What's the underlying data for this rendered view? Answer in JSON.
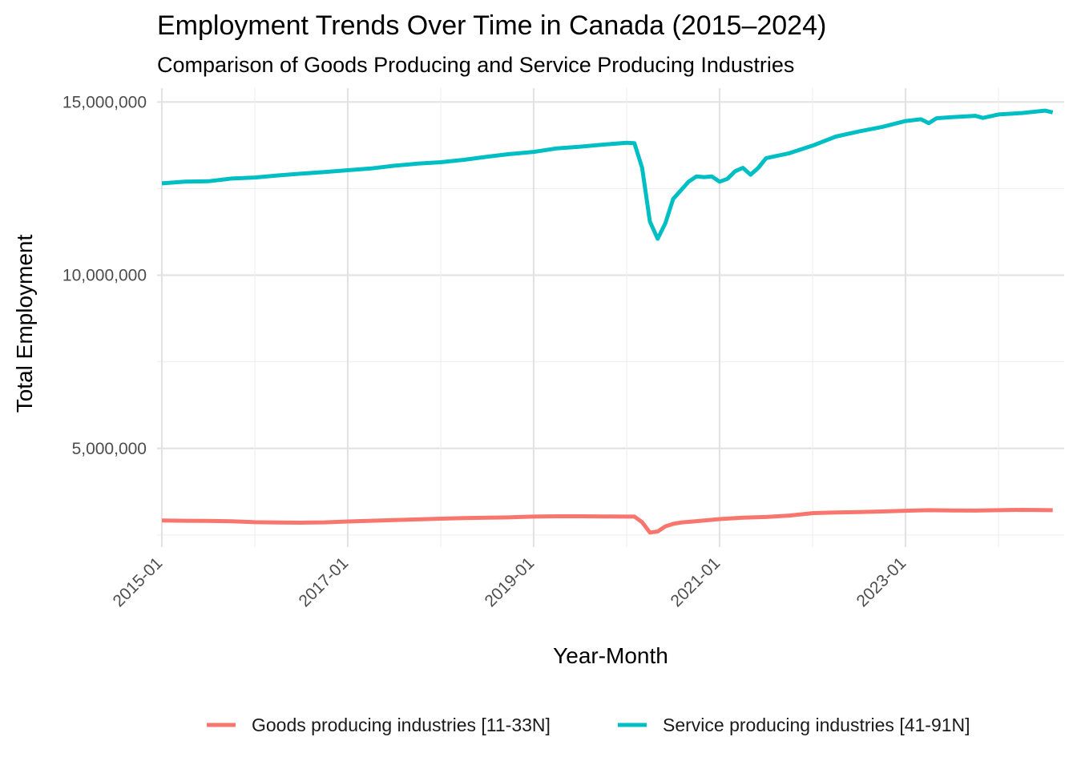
{
  "chart_data": {
    "type": "line",
    "title": "Employment Trends Over Time in Canada (2015–2024)",
    "subtitle": "Comparison of Goods Producing and Service Producing Industries",
    "xlabel": "Year-Month",
    "ylabel": "Total Employment",
    "x_ticks": [
      "2015-01",
      "2017-01",
      "2019-01",
      "2021-01",
      "2023-01"
    ],
    "y_ticks": [
      {
        "value": 5000000,
        "label": "5,000,000"
      },
      {
        "value": 10000000,
        "label": "10,000,000"
      },
      {
        "value": 15000000,
        "label": "15,000,000"
      }
    ],
    "xlim": [
      "2015-01",
      "2024-08"
    ],
    "ylim": [
      2150000,
      15400000
    ],
    "grid": true,
    "legend_position": "bottom",
    "series": [
      {
        "name": "Goods producing industries [11-33N]",
        "color": "#F8766D",
        "points": [
          [
            "2015-01",
            2920000
          ],
          [
            "2015-04",
            2910000
          ],
          [
            "2015-07",
            2905000
          ],
          [
            "2015-10",
            2895000
          ],
          [
            "2016-01",
            2870000
          ],
          [
            "2016-04",
            2860000
          ],
          [
            "2016-07",
            2855000
          ],
          [
            "2016-10",
            2865000
          ],
          [
            "2017-01",
            2890000
          ],
          [
            "2017-04",
            2910000
          ],
          [
            "2017-07",
            2930000
          ],
          [
            "2017-10",
            2950000
          ],
          [
            "2018-01",
            2970000
          ],
          [
            "2018-04",
            2990000
          ],
          [
            "2018-07",
            3000000
          ],
          [
            "2018-10",
            3010000
          ],
          [
            "2019-01",
            3030000
          ],
          [
            "2019-04",
            3040000
          ],
          [
            "2019-07",
            3040000
          ],
          [
            "2019-10",
            3035000
          ],
          [
            "2020-01",
            3030000
          ],
          [
            "2020-02",
            3030000
          ],
          [
            "2020-03",
            2870000
          ],
          [
            "2020-04",
            2570000
          ],
          [
            "2020-05",
            2600000
          ],
          [
            "2020-06",
            2750000
          ],
          [
            "2020-07",
            2820000
          ],
          [
            "2020-08",
            2860000
          ],
          [
            "2020-10",
            2900000
          ],
          [
            "2021-01",
            2960000
          ],
          [
            "2021-04",
            3000000
          ],
          [
            "2021-07",
            3020000
          ],
          [
            "2021-10",
            3060000
          ],
          [
            "2022-01",
            3130000
          ],
          [
            "2022-04",
            3150000
          ],
          [
            "2022-07",
            3160000
          ],
          [
            "2022-10",
            3180000
          ],
          [
            "2023-01",
            3200000
          ],
          [
            "2023-04",
            3215000
          ],
          [
            "2023-07",
            3210000
          ],
          [
            "2023-10",
            3205000
          ],
          [
            "2024-01",
            3215000
          ],
          [
            "2024-04",
            3225000
          ],
          [
            "2024-08",
            3215000
          ]
        ]
      },
      {
        "name": "Service producing industries [41-91N]",
        "color": "#00BFC4",
        "points": [
          [
            "2015-01",
            12650000
          ],
          [
            "2015-04",
            12700000
          ],
          [
            "2015-07",
            12710000
          ],
          [
            "2015-10",
            12790000
          ],
          [
            "2016-01",
            12820000
          ],
          [
            "2016-04",
            12880000
          ],
          [
            "2016-07",
            12930000
          ],
          [
            "2016-10",
            12980000
          ],
          [
            "2017-01",
            13030000
          ],
          [
            "2017-04",
            13080000
          ],
          [
            "2017-07",
            13160000
          ],
          [
            "2017-10",
            13220000
          ],
          [
            "2018-01",
            13260000
          ],
          [
            "2018-04",
            13330000
          ],
          [
            "2018-07",
            13420000
          ],
          [
            "2018-10",
            13500000
          ],
          [
            "2019-01",
            13560000
          ],
          [
            "2019-04",
            13660000
          ],
          [
            "2019-07",
            13710000
          ],
          [
            "2019-10",
            13770000
          ],
          [
            "2020-01",
            13820000
          ],
          [
            "2020-02",
            13810000
          ],
          [
            "2020-03",
            13100000
          ],
          [
            "2020-04",
            11550000
          ],
          [
            "2020-05",
            11050000
          ],
          [
            "2020-06",
            11500000
          ],
          [
            "2020-07",
            12200000
          ],
          [
            "2020-08",
            12450000
          ],
          [
            "2020-09",
            12700000
          ],
          [
            "2020-10",
            12850000
          ],
          [
            "2020-11",
            12830000
          ],
          [
            "2020-12",
            12850000
          ],
          [
            "2021-01",
            12700000
          ],
          [
            "2021-02",
            12780000
          ],
          [
            "2021-03",
            13000000
          ],
          [
            "2021-04",
            13100000
          ],
          [
            "2021-05",
            12900000
          ],
          [
            "2021-06",
            13100000
          ],
          [
            "2021-07",
            13380000
          ],
          [
            "2021-10",
            13520000
          ],
          [
            "2022-01",
            13740000
          ],
          [
            "2022-04",
            14000000
          ],
          [
            "2022-07",
            14150000
          ],
          [
            "2022-10",
            14280000
          ],
          [
            "2023-01",
            14450000
          ],
          [
            "2023-03",
            14500000
          ],
          [
            "2023-04",
            14390000
          ],
          [
            "2023-05",
            14530000
          ],
          [
            "2023-07",
            14560000
          ],
          [
            "2023-10",
            14600000
          ],
          [
            "2023-11",
            14540000
          ],
          [
            "2024-01",
            14640000
          ],
          [
            "2024-04",
            14680000
          ],
          [
            "2024-07",
            14750000
          ],
          [
            "2024-08",
            14700000
          ]
        ]
      }
    ]
  }
}
